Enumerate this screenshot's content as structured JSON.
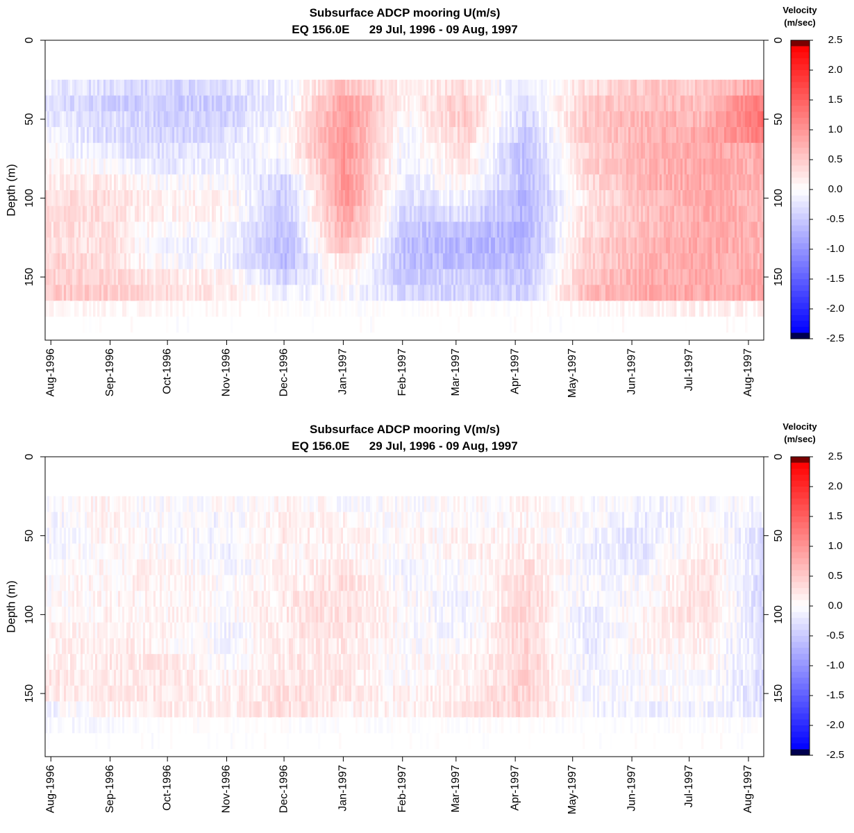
{
  "chart_data": [
    {
      "type": "heatmap",
      "title": "Subsurface ADCP mooring U(m/s)",
      "subtitle": "EQ 156.0E      29 Jul, 1996 - 09 Aug, 1997",
      "ylabel": "Depth (m)",
      "ylim": [
        190,
        0
      ],
      "x_range": [
        "1996-07-29",
        "1997-08-09"
      ],
      "y_ticks": [
        "0",
        "50",
        "100",
        "150"
      ],
      "y_tick_values": [
        0,
        50,
        100,
        150
      ],
      "x_ticks": [
        "Aug-1996",
        "Sep-1996",
        "Oct-1996",
        "Nov-1996",
        "Dec-1996",
        "Jan-1997",
        "Feb-1997",
        "Mar-1997",
        "Apr-1997",
        "May-1997",
        "Jun-1997",
        "Jul-1997",
        "Aug-1997"
      ],
      "x_tick_dates": [
        "1996-08-01",
        "1996-09-01",
        "1996-10-01",
        "1996-11-01",
        "1996-12-01",
        "1997-01-01",
        "1997-02-01",
        "1997-03-01",
        "1997-04-01",
        "1997-05-01",
        "1997-06-01",
        "1997-07-01",
        "1997-08-01"
      ],
      "depth_bins": [
        30,
        40,
        50,
        60,
        70,
        80,
        90,
        100,
        110,
        120,
        130,
        140,
        150,
        160,
        170,
        180
      ],
      "periods": [
        "Aug-1996",
        "Sep-1996",
        "Oct-1996",
        "Nov-1996",
        "Dec-1996",
        "Jan-1997",
        "Feb-1997",
        "Mar-1997",
        "Apr-1997",
        "May-1997",
        "Jun-1997",
        "Jul-1997",
        "Aug-1997"
      ],
      "values": [
        [
          -0.2,
          -0.3,
          -0.4,
          -0.3,
          -0.1,
          0.6,
          0.1,
          0.3,
          -0.3,
          0.3,
          0.5,
          0.5,
          0.9
        ],
        [
          -0.3,
          -0.4,
          -0.5,
          -0.4,
          -0.1,
          0.9,
          0.1,
          0.5,
          -0.4,
          0.5,
          0.6,
          0.6,
          1.3
        ],
        [
          -0.2,
          -0.3,
          -0.4,
          -0.4,
          0.0,
          1.0,
          0.0,
          0.5,
          -0.4,
          0.5,
          0.7,
          0.7,
          1.4
        ],
        [
          -0.1,
          -0.3,
          -0.4,
          -0.3,
          0.0,
          1.0,
          -0.1,
          0.4,
          -0.5,
          0.5,
          0.7,
          0.8,
          1.2
        ],
        [
          0.0,
          -0.2,
          -0.3,
          -0.2,
          0.0,
          1.0,
          -0.1,
          0.3,
          -0.6,
          0.4,
          0.7,
          0.8,
          0.8
        ],
        [
          0.1,
          0.0,
          -0.2,
          -0.1,
          -0.2,
          1.0,
          -0.2,
          0.2,
          -0.6,
          0.4,
          0.7,
          0.8,
          0.7
        ],
        [
          0.2,
          0.2,
          0.0,
          0.0,
          -0.4,
          1.0,
          -0.2,
          0.1,
          -0.6,
          0.3,
          0.7,
          0.8,
          0.7
        ],
        [
          0.3,
          0.3,
          0.1,
          0.1,
          -0.5,
          1.0,
          -0.3,
          -0.1,
          -0.7,
          0.2,
          0.6,
          0.8,
          0.7
        ],
        [
          0.3,
          0.3,
          0.1,
          0.1,
          -0.5,
          0.9,
          -0.4,
          -0.3,
          -0.7,
          0.3,
          0.6,
          0.8,
          0.7
        ],
        [
          0.3,
          0.3,
          0.0,
          0.0,
          -0.6,
          0.8,
          -0.5,
          -0.6,
          -0.7,
          0.3,
          0.6,
          0.8,
          0.7
        ],
        [
          0.3,
          0.3,
          -0.1,
          -0.1,
          -0.6,
          0.6,
          -0.6,
          -0.7,
          -0.7,
          0.4,
          0.7,
          0.8,
          0.7
        ],
        [
          0.4,
          0.3,
          0.0,
          -0.1,
          -0.6,
          0.3,
          -0.6,
          -0.6,
          -0.6,
          0.4,
          0.7,
          0.8,
          0.7
        ],
        [
          0.4,
          0.4,
          0.2,
          0.1,
          -0.4,
          0.1,
          -0.5,
          -0.4,
          -0.5,
          0.5,
          0.8,
          0.8,
          0.8
        ],
        [
          0.5,
          0.5,
          0.3,
          0.2,
          -0.2,
          0.0,
          -0.4,
          -0.4,
          -0.4,
          0.6,
          0.8,
          0.8,
          0.8
        ],
        [
          0.3,
          0.3,
          0.2,
          0.2,
          0.0,
          0.0,
          0.0,
          0.1,
          0.0,
          0.2,
          0.4,
          0.5,
          0.5
        ],
        [
          0.1,
          0.1,
          0.0,
          0.0,
          0.0,
          0.0,
          0.0,
          0.0,
          0.0,
          0.0,
          0.1,
          0.1,
          0.1
        ]
      ],
      "colorbar": {
        "title": "Velocity",
        "unit": "(m/sec)",
        "range": [
          -2.5,
          2.5
        ],
        "ticks": [
          "2.5",
          "2.0",
          "1.5",
          "1.0",
          "0.5",
          "0.0",
          "-0.5",
          "-1.0",
          "-1.5",
          "-2.0",
          "-2.5"
        ],
        "tick_values": [
          2.5,
          2.0,
          1.5,
          1.0,
          0.5,
          0.0,
          -0.5,
          -1.0,
          -1.5,
          -2.0,
          -2.5
        ]
      }
    },
    {
      "type": "heatmap",
      "title": "Subsurface ADCP mooring V(m/s)",
      "subtitle": "EQ 156.0E      29 Jul, 1996 - 09 Aug, 1997",
      "ylabel": "Depth (m)",
      "ylim": [
        190,
        0
      ],
      "x_range": [
        "1996-07-29",
        "1997-08-09"
      ],
      "y_ticks": [
        "0",
        "50",
        "100",
        "150"
      ],
      "y_tick_values": [
        0,
        50,
        100,
        150
      ],
      "x_ticks": [
        "Aug-1996",
        "Sep-1996",
        "Oct-1996",
        "Nov-1996",
        "Dec-1996",
        "Jan-1997",
        "Feb-1997",
        "Mar-1997",
        "Apr-1997",
        "May-1997",
        "Jun-1997",
        "Jul-1997",
        "Aug-1997"
      ],
      "x_tick_dates": [
        "1996-08-01",
        "1996-09-01",
        "1996-10-01",
        "1996-11-01",
        "1996-12-01",
        "1997-01-01",
        "1997-02-01",
        "1997-03-01",
        "1997-04-01",
        "1997-05-01",
        "1997-06-01",
        "1997-07-01",
        "1997-08-01"
      ],
      "depth_bins": [
        30,
        40,
        50,
        60,
        70,
        80,
        90,
        100,
        110,
        120,
        130,
        140,
        150,
        160,
        170,
        180
      ],
      "periods": [
        "Aug-1996",
        "Sep-1996",
        "Oct-1996",
        "Nov-1996",
        "Dec-1996",
        "Jan-1997",
        "Feb-1997",
        "Mar-1997",
        "Apr-1997",
        "May-1997",
        "Jun-1997",
        "Jul-1997",
        "Aug-1997"
      ],
      "values": [
        [
          0.0,
          0.1,
          0.0,
          0.0,
          0.1,
          0.0,
          0.0,
          0.0,
          0.1,
          0.0,
          -0.1,
          0.0,
          -0.1
        ],
        [
          -0.1,
          0.1,
          0.0,
          -0.1,
          0.2,
          0.1,
          0.0,
          0.0,
          0.1,
          0.0,
          -0.2,
          0.0,
          -0.2
        ],
        [
          -0.1,
          0.1,
          0.0,
          -0.1,
          0.2,
          0.1,
          0.0,
          0.1,
          0.1,
          -0.1,
          -0.2,
          0.1,
          -0.3
        ],
        [
          -0.1,
          0.1,
          0.0,
          -0.1,
          0.1,
          0.1,
          0.0,
          0.1,
          0.2,
          -0.1,
          -0.2,
          0.2,
          -0.3
        ],
        [
          0.0,
          0.1,
          0.1,
          -0.1,
          0.1,
          0.2,
          -0.1,
          0.0,
          0.3,
          -0.1,
          -0.1,
          0.3,
          -0.3
        ],
        [
          0.0,
          0.1,
          0.1,
          0.0,
          0.1,
          0.3,
          -0.1,
          0.0,
          0.3,
          -0.1,
          0.0,
          0.3,
          -0.4
        ],
        [
          0.0,
          0.1,
          0.1,
          0.0,
          0.2,
          0.3,
          0.0,
          -0.1,
          0.4,
          -0.1,
          0.0,
          0.3,
          -0.4
        ],
        [
          0.0,
          0.1,
          0.1,
          0.0,
          0.2,
          0.3,
          0.0,
          -0.1,
          0.4,
          -0.2,
          0.1,
          0.3,
          -0.4
        ],
        [
          0.1,
          0.1,
          0.1,
          -0.1,
          0.2,
          0.3,
          0.0,
          -0.1,
          0.4,
          -0.2,
          0.1,
          0.2,
          -0.3
        ],
        [
          0.1,
          0.2,
          0.1,
          -0.1,
          0.2,
          0.2,
          0.0,
          0.0,
          0.4,
          -0.2,
          0.1,
          0.1,
          -0.3
        ],
        [
          0.1,
          0.2,
          0.2,
          0.0,
          0.2,
          0.2,
          0.0,
          0.1,
          0.4,
          -0.1,
          0.0,
          0.1,
          -0.3
        ],
        [
          0.2,
          0.2,
          0.2,
          0.1,
          0.2,
          0.2,
          0.0,
          0.1,
          0.4,
          -0.1,
          0.0,
          0.0,
          -0.3
        ],
        [
          0.2,
          0.2,
          0.2,
          0.1,
          0.3,
          0.2,
          0.1,
          0.2,
          0.4,
          -0.1,
          0.0,
          0.0,
          -0.3
        ],
        [
          -0.1,
          0.1,
          0.2,
          0.1,
          0.3,
          0.1,
          0.1,
          0.2,
          0.4,
          -0.1,
          -0.1,
          -0.1,
          -0.2
        ],
        [
          -0.2,
          -0.2,
          0.0,
          0.0,
          0.0,
          0.0,
          0.0,
          0.0,
          0.0,
          0.0,
          0.0,
          0.0,
          0.0
        ],
        [
          -0.1,
          -0.1,
          0.0,
          0.0,
          0.0,
          0.0,
          0.0,
          0.0,
          0.0,
          0.0,
          0.0,
          0.0,
          0.0
        ]
      ],
      "colorbar": {
        "title": "Velocity",
        "unit": "(m/sec)",
        "range": [
          -2.5,
          2.5
        ],
        "ticks": [
          "2.5",
          "2.0",
          "1.5",
          "1.0",
          "0.5",
          "0.0",
          "-0.5",
          "-1.0",
          "-1.5",
          "-2.0",
          "-2.5"
        ],
        "tick_values": [
          2.5,
          2.0,
          1.5,
          1.0,
          0.5,
          0.0,
          -0.5,
          -1.0,
          -1.5,
          -2.0,
          -2.5
        ]
      }
    }
  ]
}
